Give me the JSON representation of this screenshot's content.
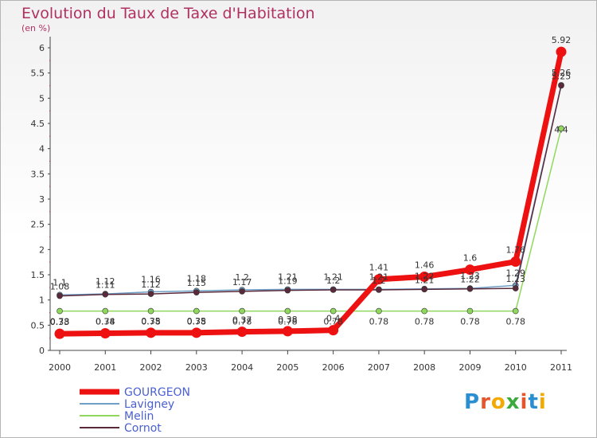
{
  "chart_data": {
    "type": "line",
    "title": "Evolution du Taux de Taxe d'Habitation",
    "ylabel": "(en %)",
    "xlabel": "",
    "ylim": [
      0,
      6
    ],
    "yticks": [
      "0",
      "0.5",
      "1",
      "1.5",
      "2",
      "2.5",
      "3",
      "3.5",
      "4",
      "4.5",
      "5",
      "5.5",
      "6"
    ],
    "categories": [
      "2000",
      "2001",
      "2002",
      "2003",
      "2004",
      "2005",
      "2006",
      "2007",
      "2008",
      "2009",
      "2010",
      "2011"
    ],
    "series": [
      {
        "name": "Lavigney",
        "color": "#6e9fc7",
        "values": [
          1.1,
          1.12,
          1.16,
          1.18,
          1.2,
          1.21,
          1.21,
          1.21,
          1.22,
          1.23,
          1.29,
          5.26
        ]
      },
      {
        "name": "Melin",
        "color": "#8fd85d",
        "values": [
          0.78,
          0.78,
          0.78,
          0.78,
          0.78,
          0.78,
          0.78,
          0.78,
          0.78,
          0.78,
          0.78,
          4.4
        ]
      },
      {
        "name": "Cornot",
        "color": "#5a2a3a",
        "values": [
          1.08,
          1.11,
          1.12,
          1.15,
          1.17,
          1.19,
          1.2,
          1.2,
          1.21,
          1.22,
          1.23,
          5.25
        ]
      },
      {
        "name": "GOURGEON",
        "color": "#ee1111",
        "values": [
          0.33,
          0.34,
          0.35,
          0.35,
          0.37,
          0.38,
          0.4,
          1.41,
          1.46,
          1.6,
          1.76,
          5.92
        ]
      }
    ],
    "point_labels": [
      {
        "series": "Lavigney",
        "labels": [
          "1.1",
          "1.12",
          "1.16",
          "1.18",
          "1.2",
          "1.21",
          "1.21",
          "1.21",
          "1.22",
          "1.23",
          "1.29",
          "5.26"
        ]
      },
      {
        "series": "Melin",
        "labels": [
          "0.78",
          "0.78",
          "0.78",
          "0.78",
          "0.78",
          "0.78",
          "0.78",
          "0.78",
          "0.78",
          "0.78",
          "0.78",
          "4.4"
        ]
      },
      {
        "series": "Cornot",
        "labels": [
          "1.08",
          "1.11",
          "1.12",
          "1.15",
          "1.17",
          "1.19",
          "1.2",
          "1.2",
          "1.21",
          "1.22",
          "1.23",
          "5.25"
        ]
      },
      {
        "series": "GOURGEON",
        "labels": [
          "0.33",
          "0.34",
          "0.35",
          "0.35",
          "0.37",
          "0.38",
          "0.4",
          "1.41",
          "1.46",
          "1.6",
          "1.76",
          "5.92"
        ]
      }
    ],
    "legend": [
      "GOURGEON",
      "Lavigney",
      "Melin",
      "Cornot"
    ],
    "legend_position": "bottom-left"
  },
  "brand": {
    "logo_letters": [
      "P",
      "r",
      "o",
      "x",
      "i",
      "t",
      "i"
    ],
    "logo_colors": [
      "#2a8fd0",
      "#e4572e",
      "#f2a900",
      "#3caa3c",
      "#e4572e",
      "#2a8fd0",
      "#f2a900"
    ]
  }
}
